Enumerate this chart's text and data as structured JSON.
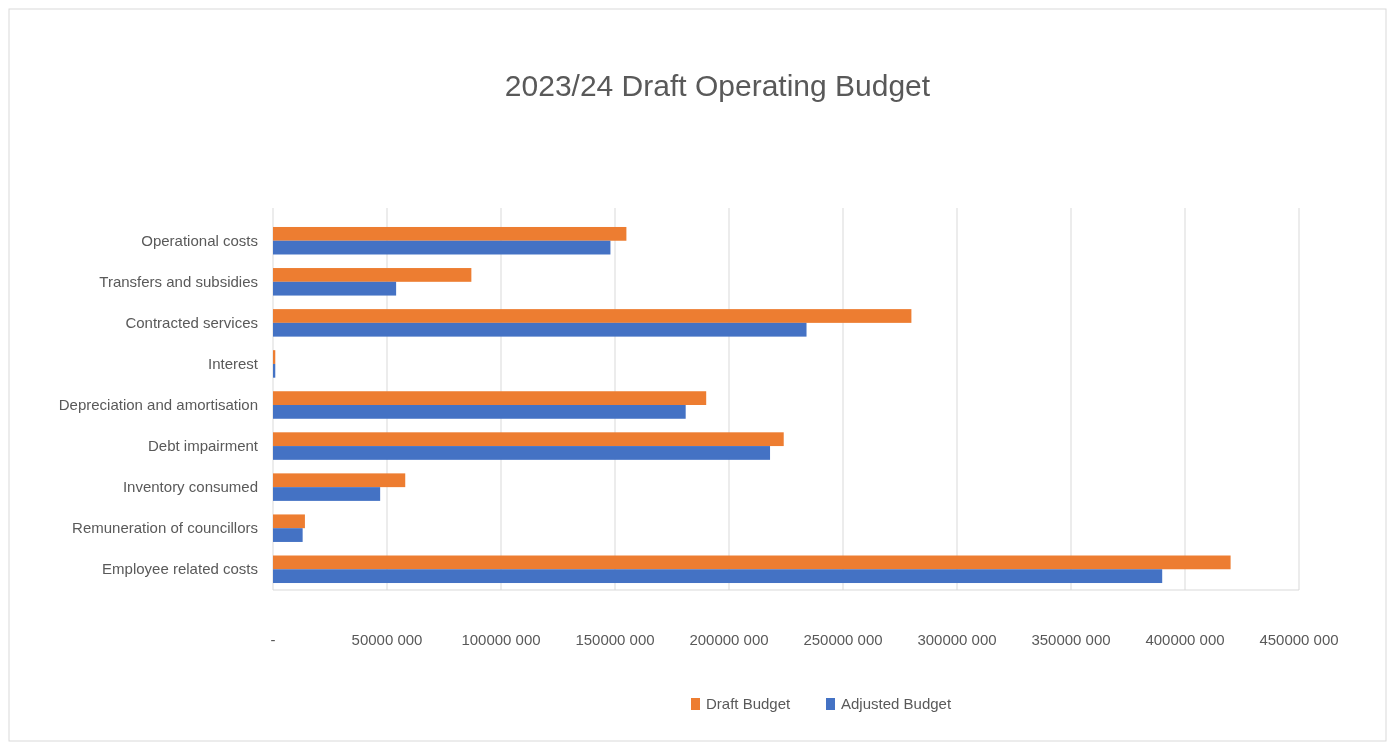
{
  "chart_data": {
    "type": "bar",
    "orientation": "horizontal",
    "title": "2023/24 Draft Operating Budget",
    "categories": [
      "Operational costs",
      "Transfers and subsidies",
      "Contracted services",
      "Interest",
      "Depreciation and amortisation",
      "Debt impairment",
      "Inventory consumed",
      "Remuneration of councillors",
      "Employee related costs"
    ],
    "series": [
      {
        "name": "Draft Budget",
        "color": "#ed7d31",
        "values": [
          155000000,
          87000000,
          280000000,
          1000000,
          190000000,
          224000000,
          58000000,
          14000000,
          420000000
        ]
      },
      {
        "name": "Adjusted Budget",
        "color": "#4472c4",
        "values": [
          148000000,
          54000000,
          234000000,
          1000000,
          181000000,
          218000000,
          47000000,
          13000000,
          390000000
        ]
      }
    ],
    "xlim": [
      0,
      450000000
    ],
    "xticks": [
      {
        "value": 0,
        "label": "-"
      },
      {
        "value": 50000000,
        "label": "50000 000"
      },
      {
        "value": 100000000,
        "label": "100000 000"
      },
      {
        "value": 150000000,
        "label": "150000 000"
      },
      {
        "value": 200000000,
        "label": "200000 000"
      },
      {
        "value": 250000000,
        "label": "250000 000"
      },
      {
        "value": 300000000,
        "label": "300000 000"
      },
      {
        "value": 350000000,
        "label": "350000 000"
      },
      {
        "value": 400000000,
        "label": "400000 000"
      },
      {
        "value": 450000000,
        "label": "450000 000"
      }
    ],
    "grid": "x",
    "legend": "bottom"
  }
}
